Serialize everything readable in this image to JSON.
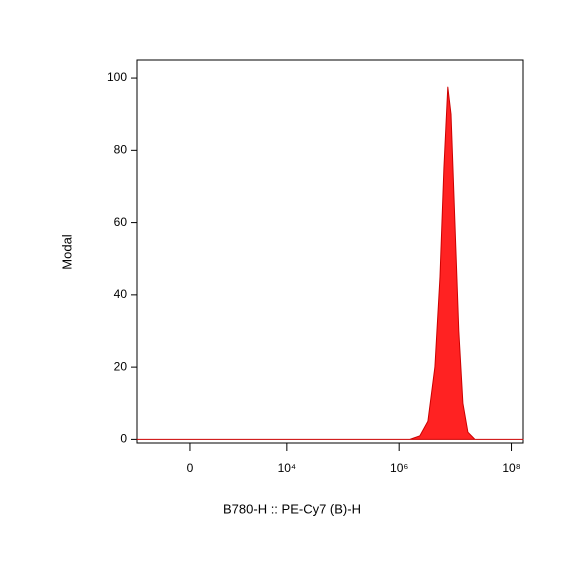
{
  "chart_data": {
    "type": "area",
    "xlabel": "B780-H :: PE-Cy7 (B)-H",
    "ylabel": "Modal",
    "xscale": "biexponential",
    "x": [
      -1630,
      1550000,
      2340000,
      3250000,
      4320000,
      5330000,
      6260000,
      7350000,
      8360000,
      9810000,
      11500000,
      13600000,
      16700000,
      22300000,
      160000000
    ],
    "values": [
      0,
      0,
      1,
      5,
      20,
      45,
      75,
      97.5,
      90,
      60,
      30,
      10,
      2,
      0,
      0
    ],
    "color": "#ff2222",
    "edge_color": "#cc0000",
    "xlim": [
      -1630,
      160000000
    ],
    "xticks": [
      0,
      {
        "value": 10000,
        "label": "10⁴"
      },
      {
        "value": 1000000,
        "label": "10⁶"
      },
      {
        "value": 100000000,
        "label": "10⁸"
      }
    ],
    "ylim": [
      -1,
      105
    ],
    "yticks": [
      0,
      20,
      40,
      60,
      80,
      100
    ],
    "grid": false
  }
}
